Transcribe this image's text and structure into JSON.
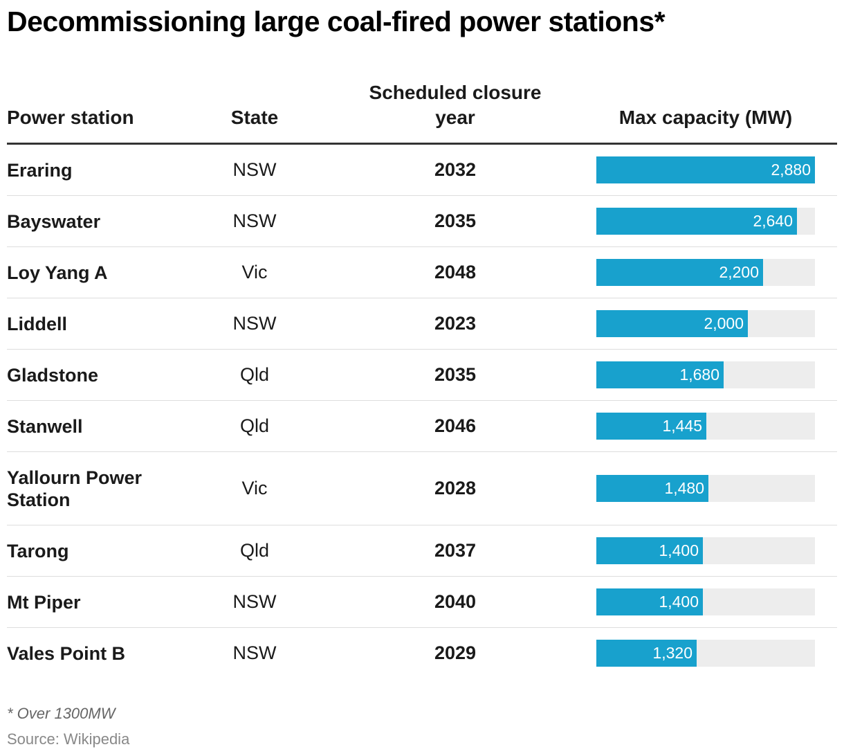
{
  "title": "Decommissioning large coal-fired power stations*",
  "headers": {
    "station": "Power station",
    "state": "State",
    "year_line1": "Scheduled closure",
    "year_line2": "year",
    "capacity": "Max capacity (MW)"
  },
  "colors": {
    "bar": "#18a1cd",
    "track": "#ededed"
  },
  "chart_data": {
    "type": "table",
    "columns": [
      "Power station",
      "State",
      "Scheduled closure year",
      "Max capacity (MW)"
    ],
    "bar_max": 2880,
    "rows": [
      {
        "station": "Eraring",
        "state": "NSW",
        "year": "2032",
        "capacity": 2880,
        "capacity_label": "2,880"
      },
      {
        "station": "Bayswater",
        "state": "NSW",
        "year": "2035",
        "capacity": 2640,
        "capacity_label": "2,640"
      },
      {
        "station": "Loy Yang A",
        "state": "Vic",
        "year": "2048",
        "capacity": 2200,
        "capacity_label": "2,200"
      },
      {
        "station": "Liddell",
        "state": "NSW",
        "year": "2023",
        "capacity": 2000,
        "capacity_label": "2,000"
      },
      {
        "station": "Gladstone",
        "state": "Qld",
        "year": "2035",
        "capacity": 1680,
        "capacity_label": "1,680"
      },
      {
        "station": "Stanwell",
        "state": "Qld",
        "year": "2046",
        "capacity": 1445,
        "capacity_label": "1,445"
      },
      {
        "station": "Yallourn Power Station",
        "state": "Vic",
        "year": "2028",
        "capacity": 1480,
        "capacity_label": "1,480"
      },
      {
        "station": "Tarong",
        "state": "Qld",
        "year": "2037",
        "capacity": 1400,
        "capacity_label": "1,400"
      },
      {
        "station": "Mt Piper",
        "state": "NSW",
        "year": "2040",
        "capacity": 1400,
        "capacity_label": "1,400"
      },
      {
        "station": "Vales Point B",
        "state": "NSW",
        "year": "2029",
        "capacity": 1320,
        "capacity_label": "1,320"
      }
    ]
  },
  "footnote": "* Over 1300MW",
  "source": "Source: Wikipedia"
}
